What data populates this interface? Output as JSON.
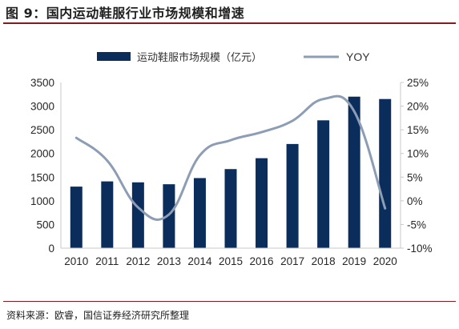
{
  "header": {
    "title": "图 9：国内运动鞋服行业市场规模和增速"
  },
  "source_note": "资料来源：欧睿，国信证券经济研究所整理",
  "colors": {
    "bar": "#0a2d5c",
    "line": "#8c9db4",
    "rule": "#7b1f23",
    "axis": "#c8c8c8"
  },
  "chart_data": {
    "type": "bar+line",
    "categories": [
      "2010",
      "2011",
      "2012",
      "2013",
      "2014",
      "2015",
      "2016",
      "2017",
      "2018",
      "2019",
      "2020"
    ],
    "series": [
      {
        "name": "运动鞋服市场规模（亿元）",
        "type": "bar",
        "axis": "left",
        "values": [
          1300,
          1410,
          1390,
          1350,
          1480,
          1670,
          1900,
          2200,
          2700,
          3200,
          3150
        ]
      },
      {
        "name": "YOY",
        "type": "line",
        "axis": "right",
        "values": [
          13.3,
          8.5,
          -1.4,
          -2.9,
          9.6,
          12.8,
          14.5,
          16.9,
          21.5,
          18.9,
          -1.6
        ]
      }
    ],
    "left_axis": {
      "ylim": [
        0,
        3500
      ],
      "ticks": [
        "0",
        "500",
        "1000",
        "1500",
        "2000",
        "2500",
        "3000",
        "3500"
      ]
    },
    "right_axis": {
      "ylim": [
        -10,
        25
      ],
      "ticks": [
        "-10%",
        "-5%",
        "0%",
        "5%",
        "10%",
        "15%",
        "20%",
        "25%"
      ]
    },
    "grid": false,
    "legend": {
      "position": "top"
    }
  }
}
